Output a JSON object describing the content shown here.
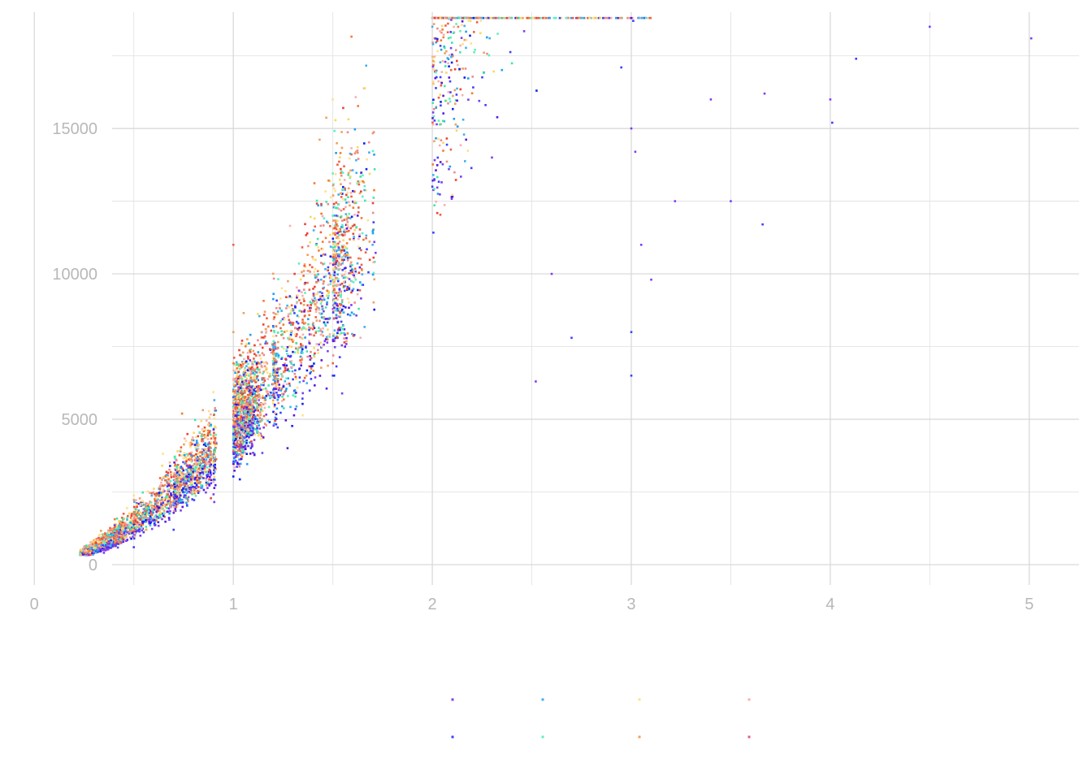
{
  "chart_data": {
    "type": "scatter",
    "title": "",
    "xlabel": "",
    "ylabel": "",
    "xlim": [
      -0.05,
      5.25
    ],
    "ylim": [
      -700,
      19000
    ],
    "x_ticks": [
      {
        "value": 0,
        "label": "0"
      },
      {
        "value": 1,
        "label": "1"
      },
      {
        "value": 2,
        "label": "2"
      },
      {
        "value": 3,
        "label": "3"
      },
      {
        "value": 4,
        "label": "4"
      },
      {
        "value": 5,
        "label": "5"
      }
    ],
    "y_ticks": [
      {
        "value": 0,
        "label": "0"
      },
      {
        "value": 5000,
        "label": "5000"
      },
      {
        "value": 10000,
        "label": "10000"
      },
      {
        "value": 15000,
        "label": "15000"
      }
    ],
    "x_minor_gridlines": [
      0.5,
      1.5,
      2.5,
      3.5,
      4.5
    ],
    "y_minor_gridlines": [
      2500,
      7500,
      12500,
      17500
    ],
    "grid": true,
    "legend": {
      "placement": "bottom",
      "rows": 2,
      "columns": 4,
      "labels_visible": false,
      "key_colors": [
        "#7b3ff2",
        "#3fb0f0",
        "#ffe08a",
        "#f7b0b0",
        "#4040ff",
        "#5ff0c0",
        "#f0a060",
        "#e06080"
      ]
    },
    "series": [
      {
        "group": 1,
        "color": "#7b3ff2"
      },
      {
        "group": 2,
        "color": "#4040ff"
      },
      {
        "group": 3,
        "color": "#3fb0f0"
      },
      {
        "group": 4,
        "color": "#5ff0c0"
      },
      {
        "group": 5,
        "color": "#ffe08a"
      },
      {
        "group": 6,
        "color": "#f0a060"
      },
      {
        "group": 7,
        "color": "#f06040"
      },
      {
        "group": 8,
        "color": "#f7b0b0"
      }
    ],
    "sample_points": [
      [
        0.23,
        380,
        4
      ],
      [
        0.3,
        450,
        3
      ],
      [
        0.3,
        700,
        6
      ],
      [
        0.4,
        900,
        7
      ],
      [
        0.5,
        600,
        2
      ],
      [
        0.5,
        1500,
        7
      ],
      [
        0.7,
        2200,
        6
      ],
      [
        0.7,
        1200,
        2
      ],
      [
        0.9,
        3500,
        5
      ],
      [
        1.0,
        4500,
        2
      ],
      [
        1.0,
        8000,
        6
      ],
      [
        1.0,
        11000,
        7
      ],
      [
        1.2,
        7000,
        4
      ],
      [
        1.5,
        12000,
        4
      ],
      [
        1.5,
        16000,
        5
      ],
      [
        1.5,
        6500,
        2
      ],
      [
        1.7,
        11000,
        3
      ],
      [
        2.0,
        13000,
        2
      ],
      [
        2.0,
        18500,
        3
      ],
      [
        2.3,
        14000,
        1
      ],
      [
        2.6,
        10000,
        1
      ],
      [
        3.0,
        15000,
        1
      ],
      [
        3.0,
        8000,
        2
      ],
      [
        3.5,
        12500,
        1
      ],
      [
        4.01,
        15200,
        2
      ],
      [
        4.5,
        18500,
        1
      ],
      [
        5.01,
        18100,
        1
      ]
    ]
  }
}
